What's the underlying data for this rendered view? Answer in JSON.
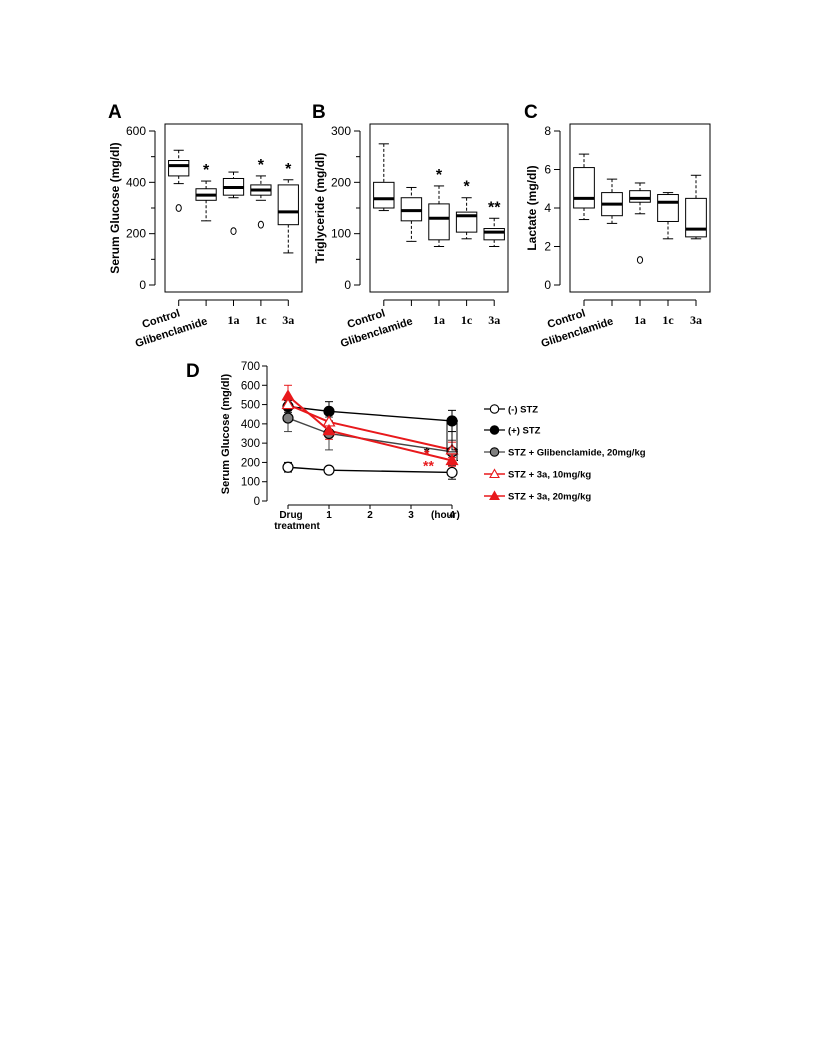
{
  "panels": {
    "A": "A",
    "B": "B",
    "C": "C",
    "D": "D"
  },
  "chart_data": [
    {
      "id": "A",
      "type": "box",
      "ylabel": "Serum Glucose (mg/dl)",
      "ylim": [
        0,
        600
      ],
      "yticks": [
        0,
        200,
        400,
        600
      ],
      "categories": [
        "Control",
        "Glibenclamide",
        "1a",
        "1c",
        "3a"
      ],
      "boxes": [
        {
          "min": 395,
          "q1": 425,
          "median": 465,
          "q3": 485,
          "max": 525,
          "outliers": [
            300
          ],
          "sig": ""
        },
        {
          "min": 250,
          "q1": 330,
          "median": 350,
          "q3": 375,
          "max": 405,
          "outliers": [],
          "sig": "*"
        },
        {
          "min": 340,
          "q1": 350,
          "median": 380,
          "q3": 415,
          "max": 440,
          "outliers": [
            210
          ],
          "sig": ""
        },
        {
          "min": 330,
          "q1": 350,
          "median": 370,
          "q3": 390,
          "max": 425,
          "outliers": [
            235
          ],
          "sig": "*"
        },
        {
          "min": 125,
          "q1": 235,
          "median": 285,
          "q3": 390,
          "max": 410,
          "outliers": [],
          "sig": "*"
        }
      ]
    },
    {
      "id": "B",
      "type": "box",
      "ylabel": "Triglyceride (mg/dl)",
      "ylim": [
        0,
        300
      ],
      "yticks": [
        0,
        100,
        200,
        300
      ],
      "categories": [
        "Control",
        "Glibenclamide",
        "1a",
        "1c",
        "3a"
      ],
      "boxes": [
        {
          "min": 145,
          "q1": 150,
          "median": 168,
          "q3": 200,
          "max": 275,
          "outliers": [],
          "sig": ""
        },
        {
          "min": 85,
          "q1": 125,
          "median": 145,
          "q3": 170,
          "max": 190,
          "outliers": [],
          "sig": ""
        },
        {
          "min": 75,
          "q1": 88,
          "median": 130,
          "q3": 158,
          "max": 193,
          "outliers": [],
          "sig": "*"
        },
        {
          "min": 90,
          "q1": 103,
          "median": 135,
          "q3": 142,
          "max": 170,
          "outliers": [],
          "sig": "*"
        },
        {
          "min": 75,
          "q1": 88,
          "median": 103,
          "q3": 110,
          "max": 130,
          "outliers": [],
          "sig": "**"
        }
      ]
    },
    {
      "id": "C",
      "type": "box",
      "ylabel": "Lactate (mg/dl)",
      "ylim": [
        0,
        8
      ],
      "yticks": [
        0,
        2,
        4,
        6,
        8
      ],
      "categories": [
        "Control",
        "Glibenclamide",
        "1a",
        "1c",
        "3a"
      ],
      "boxes": [
        {
          "min": 3.4,
          "q1": 4.0,
          "median": 4.5,
          "q3": 6.1,
          "max": 6.8,
          "outliers": [],
          "sig": ""
        },
        {
          "min": 3.2,
          "q1": 3.6,
          "median": 4.2,
          "q3": 4.8,
          "max": 5.5,
          "outliers": [],
          "sig": ""
        },
        {
          "min": 3.7,
          "q1": 4.3,
          "median": 4.5,
          "q3": 4.9,
          "max": 5.3,
          "outliers": [
            1.3
          ],
          "sig": ""
        },
        {
          "min": 2.4,
          "q1": 3.3,
          "median": 4.3,
          "q3": 4.7,
          "max": 4.8,
          "outliers": [],
          "sig": ""
        },
        {
          "min": 2.4,
          "q1": 2.5,
          "median": 2.9,
          "q3": 4.5,
          "max": 5.7,
          "outliers": [],
          "sig": ""
        }
      ]
    },
    {
      "id": "D",
      "type": "line",
      "ylabel": "Serum Glucose (mg/dl)",
      "ylim": [
        0,
        700
      ],
      "yticks": [
        0,
        100,
        200,
        300,
        400,
        500,
        600,
        700
      ],
      "x": [
        0,
        1,
        4
      ],
      "xticks": [
        {
          "v": 0,
          "label": "Drug"
        },
        {
          "v": 1,
          "label": "1"
        },
        {
          "v": 2,
          "label": "2"
        },
        {
          "v": 3,
          "label": "3"
        },
        {
          "v": 4,
          "label": "4"
        }
      ],
      "xlabel_sub": "treatment",
      "xunit": "(hour)",
      "series": [
        {
          "name": "(-) STZ",
          "values": [
            175,
            160,
            148
          ],
          "err": [
            25,
            15,
            35
          ],
          "color": "#000000",
          "fill": "#ffffff",
          "marker": "circle"
        },
        {
          "name": "(+) STZ",
          "values": [
            490,
            465,
            415
          ],
          "err": [
            30,
            50,
            55
          ],
          "color": "#000000",
          "fill": "#000000",
          "marker": "circle"
        },
        {
          "name": "STZ + Glibenclamide, 20mg/kg",
          "values": [
            430,
            350,
            255
          ],
          "err": [
            70,
            85,
            60
          ],
          "color": "#444444",
          "fill": "#7f7f7f",
          "marker": "circle"
        },
        {
          "name": "STZ + 3a, 10mg/kg",
          "values": [
            500,
            410,
            265
          ],
          "err": [
            30,
            40,
            40
          ],
          "color": "#e8191c",
          "fill": "#ffffff",
          "marker": "triangle"
        },
        {
          "name": "STZ + 3a, 20mg/kg",
          "values": [
            545,
            365,
            210
          ],
          "err": [
            55,
            45,
            30
          ],
          "color": "#e8191c",
          "fill": "#e8191c",
          "marker": "triangle"
        }
      ],
      "sig": [
        {
          "label": "*",
          "color": "#000000"
        },
        {
          "label": "*",
          "color": "#e8191c"
        },
        {
          "label": "**",
          "color": "#e8191c"
        }
      ]
    }
  ]
}
